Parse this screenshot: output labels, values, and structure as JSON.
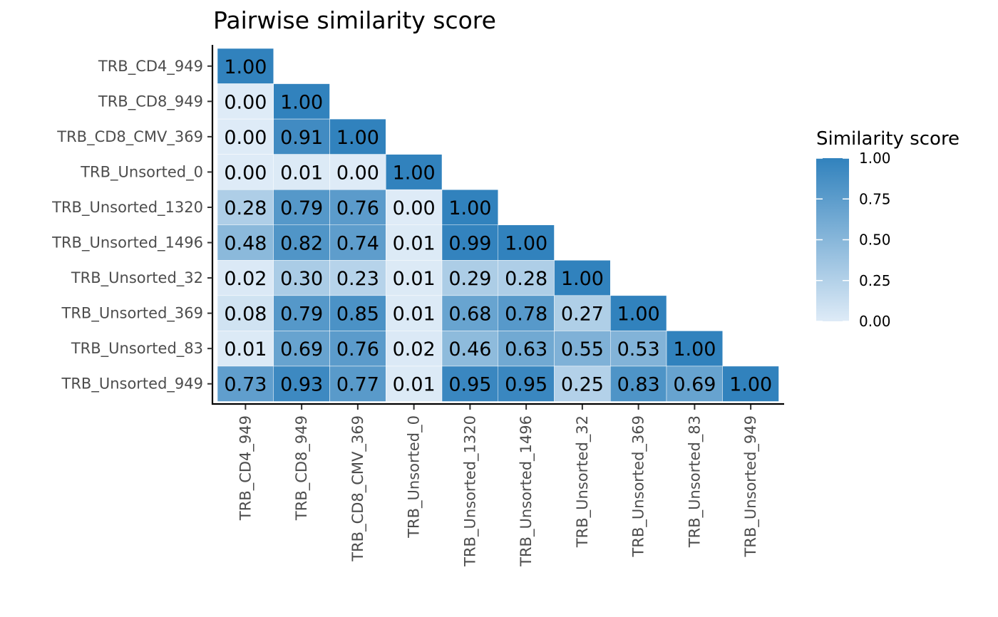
{
  "chart_data": {
    "type": "heatmap",
    "title": "Pairwise similarity score",
    "xlabel": "",
    "ylabel": "",
    "categories": [
      "TRB_CD4_949",
      "TRB_CD8_949",
      "TRB_CD8_CMV_369",
      "TRB_Unsorted_0",
      "TRB_Unsorted_1320",
      "TRB_Unsorted_1496",
      "TRB_Unsorted_32",
      "TRB_Unsorted_369",
      "TRB_Unsorted_83",
      "TRB_Unsorted_949"
    ],
    "values": [
      [
        1.0
      ],
      [
        0.0,
        1.0
      ],
      [
        0.0,
        0.91,
        1.0
      ],
      [
        0.0,
        0.01,
        0.0,
        1.0
      ],
      [
        0.28,
        0.79,
        0.76,
        0.0,
        1.0
      ],
      [
        0.48,
        0.82,
        0.74,
        0.01,
        0.99,
        1.0
      ],
      [
        0.02,
        0.3,
        0.23,
        0.01,
        0.29,
        0.28,
        1.0
      ],
      [
        0.08,
        0.79,
        0.85,
        0.01,
        0.68,
        0.78,
        0.27,
        1.0
      ],
      [
        0.01,
        0.69,
        0.76,
        0.02,
        0.46,
        0.63,
        0.55,
        0.53,
        1.0
      ],
      [
        0.73,
        0.93,
        0.77,
        0.01,
        0.95,
        0.95,
        0.25,
        0.83,
        0.69,
        1.0
      ]
    ],
    "value_range": [
      0,
      1
    ],
    "legend": {
      "title": "Similarity score",
      "ticks": [
        "0.00",
        "0.25",
        "0.50",
        "0.75",
        "1.00"
      ],
      "placement": "right"
    },
    "colors": {
      "low": "#deebf7",
      "high": "#3182bd"
    },
    "grid": false
  }
}
